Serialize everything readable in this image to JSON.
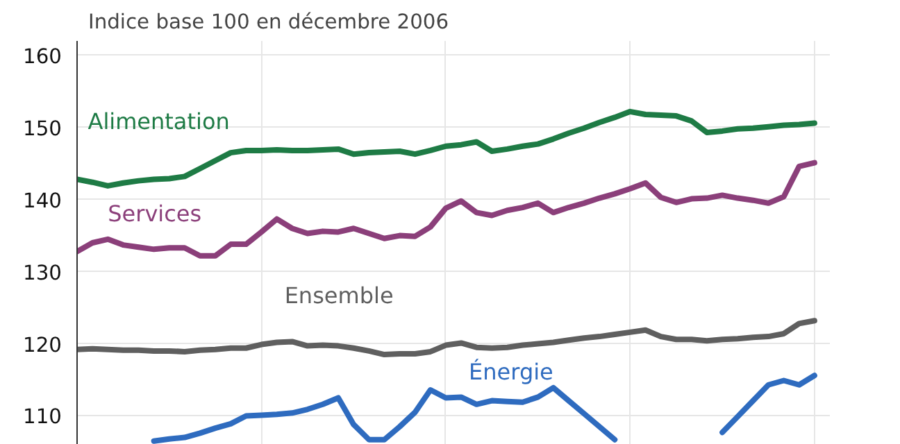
{
  "chart_data": {
    "type": "line",
    "title": "Indice base 100 en décembre 2006",
    "categories": [
      null,
      null,
      null,
      null,
      null,
      null,
      null,
      null,
      null,
      null,
      null,
      null,
      null,
      null,
      null,
      null,
      null,
      null,
      null,
      null,
      null,
      null,
      null,
      null,
      null,
      null,
      null,
      null,
      null,
      null,
      null,
      null,
      null,
      null,
      null,
      null,
      null,
      null,
      null,
      null,
      null,
      null,
      null,
      null,
      null,
      null,
      null,
      null,
      null
    ],
    "ylim": [
      106,
      162
    ],
    "yticks": [
      110,
      120,
      130,
      140,
      150,
      160
    ],
    "tick_labels": "y",
    "grid": true,
    "line_style": "solid",
    "series": [
      {
        "name": "Alimentation",
        "color": "#1e7b45",
        "values": [
          142.8,
          142.4,
          141.9,
          142.3,
          142.6,
          142.8,
          142.9,
          143.2,
          144.3,
          145.4,
          146.5,
          146.8,
          146.8,
          146.9,
          146.8,
          146.8,
          146.9,
          147.0,
          146.3,
          146.5,
          146.6,
          146.7,
          146.3,
          146.8,
          147.4,
          147.6,
          148.0,
          146.7,
          147.0,
          147.4,
          147.7,
          148.4,
          149.2,
          149.9,
          150.7,
          151.4,
          152.2,
          151.8,
          151.7,
          151.6,
          150.9,
          149.3,
          149.5,
          149.8,
          149.9,
          150.1,
          150.3,
          150.4,
          150.6
        ]
      },
      {
        "name": "Services",
        "color": "#8b3f7a",
        "values": [
          132.8,
          134.0,
          134.5,
          133.7,
          133.4,
          133.1,
          133.3,
          133.3,
          132.2,
          132.2,
          133.8,
          133.8,
          135.5,
          137.3,
          136.0,
          135.3,
          135.6,
          135.5,
          136.0,
          135.3,
          134.6,
          135.0,
          134.9,
          136.2,
          138.8,
          139.8,
          138.2,
          137.8,
          138.5,
          138.9,
          139.5,
          138.2,
          138.9,
          139.5,
          140.2,
          140.8,
          141.5,
          142.3,
          140.3,
          139.6,
          140.1,
          140.2,
          140.6,
          140.2,
          139.9,
          139.5,
          140.4,
          144.6,
          145.1
        ]
      },
      {
        "name": "Ensemble",
        "color": "#5f5f5f",
        "values": [
          119.2,
          119.3,
          119.2,
          119.1,
          119.1,
          119.0,
          119.0,
          118.9,
          119.1,
          119.2,
          119.4,
          119.4,
          119.9,
          120.2,
          120.3,
          119.7,
          119.8,
          119.7,
          119.4,
          119.0,
          118.5,
          118.6,
          118.6,
          118.9,
          119.8,
          120.1,
          119.5,
          119.4,
          119.5,
          119.8,
          120.0,
          120.2,
          120.5,
          120.8,
          121.0,
          121.3,
          121.6,
          121.9,
          121.0,
          120.6,
          120.6,
          120.4,
          120.6,
          120.7,
          120.9,
          121.0,
          121.4,
          122.8,
          123.2
        ]
      },
      {
        "name": "Énergie",
        "color": "#2e6bbf",
        "values": [
          null,
          null,
          null,
          null,
          null,
          106.5,
          106.8,
          107.0,
          107.6,
          108.3,
          108.9,
          110.0,
          110.1,
          110.2,
          110.4,
          110.9,
          111.6,
          112.5,
          108.8,
          106.7,
          106.7,
          108.5,
          110.5,
          113.6,
          112.5,
          112.6,
          111.6,
          112.1,
          112.0,
          111.9,
          112.6,
          113.9,
          112.1,
          110.3,
          108.5,
          106.7,
          null,
          null,
          null,
          null,
          null,
          null,
          107.7,
          109.9,
          112.1,
          114.3,
          114.9,
          114.3,
          115.6
        ]
      }
    ]
  }
}
